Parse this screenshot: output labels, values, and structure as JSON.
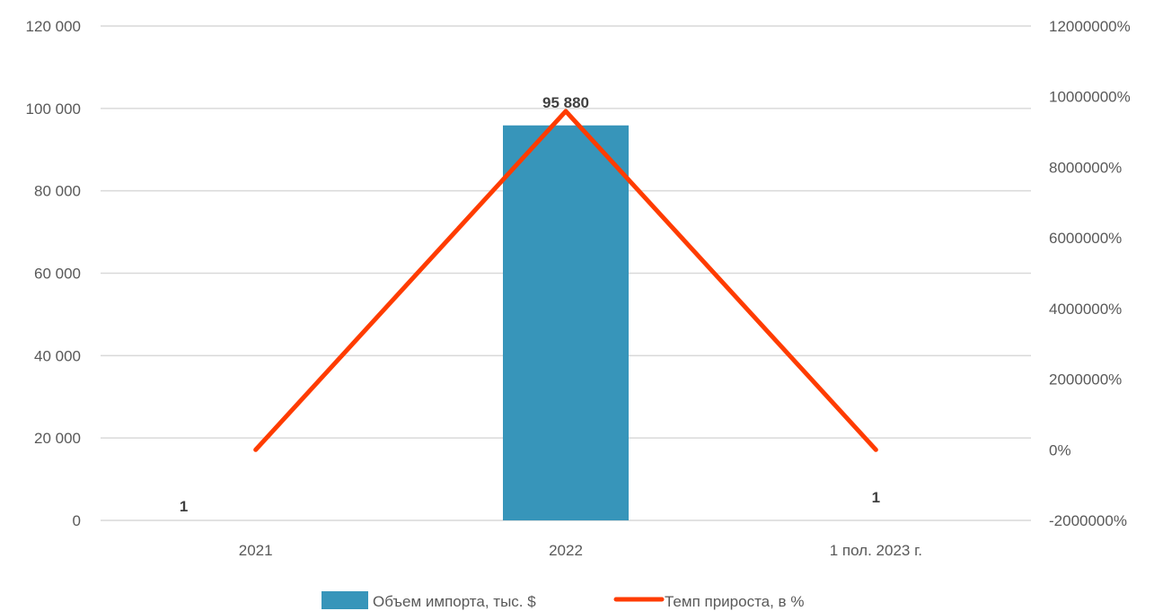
{
  "chart_data": {
    "type": "bar",
    "categories": [
      "2021",
      "2022",
      "1 пол. 2023 г."
    ],
    "series": [
      {
        "name": "Объем импорта, тыс. $",
        "type": "bar",
        "axis": "left",
        "values": [
          1,
          95880,
          1
        ],
        "data_labels": [
          "1",
          "95 880",
          "1"
        ],
        "color": "#3795BA"
      },
      {
        "name": "Темп прироста, в %",
        "type": "line",
        "axis": "right",
        "values": [
          0,
          9587900,
          0
        ],
        "color": "#FF3C00"
      }
    ],
    "y_left": {
      "ylim": [
        0,
        120000
      ],
      "ticks": [
        0,
        20000,
        40000,
        60000,
        80000,
        100000,
        120000
      ],
      "tick_labels": [
        "0",
        "20 000",
        "40 000",
        "60 000",
        "80 000",
        "100 000",
        "120 000"
      ]
    },
    "y_right": {
      "ylim": [
        -2000000,
        12000000
      ],
      "ticks": [
        -2000000,
        0,
        2000000,
        4000000,
        6000000,
        8000000,
        10000000,
        12000000
      ],
      "tick_labels": [
        "-2000000%",
        "0%",
        "2000000%",
        "4000000%",
        "6000000%",
        "8000000%",
        "10000000%",
        "12000000%"
      ]
    },
    "grid": true,
    "legend": "bottom"
  }
}
